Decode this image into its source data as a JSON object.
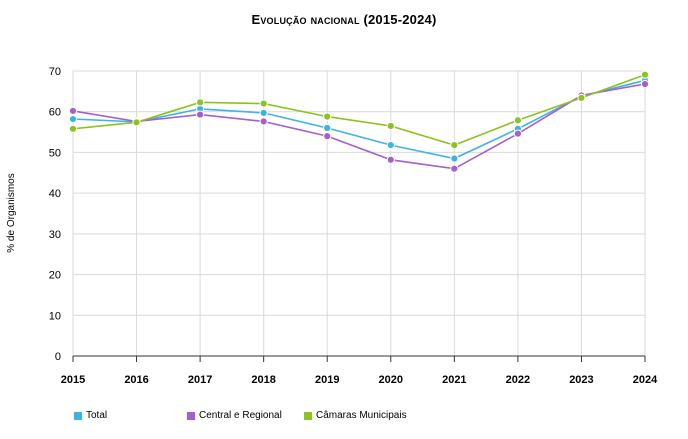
{
  "chart_data": {
    "type": "line",
    "title": "Evolução nacional (2015-2024)",
    "xlabel": "",
    "ylabel": "% de Organismos",
    "x": [
      "2015",
      "2016",
      "2017",
      "2018",
      "2019",
      "2020",
      "2021",
      "2022",
      "2023",
      "2024"
    ],
    "ylim": [
      0,
      70
    ],
    "yticks": [
      0,
      10,
      20,
      30,
      40,
      50,
      60,
      70
    ],
    "grid": true,
    "legend_position": "bottom-left",
    "series": [
      {
        "name": "Total",
        "color": "#3bb4e5",
        "values": [
          58.2,
          57.5,
          60.7,
          59.7,
          56.0,
          51.8,
          48.5,
          55.8,
          63.8,
          67.7
        ]
      },
      {
        "name": "Central e Regional",
        "color": "#a55fcf",
        "values": [
          60.2,
          57.6,
          59.3,
          57.6,
          54.0,
          48.2,
          46.0,
          54.6,
          64.0,
          66.8
        ]
      },
      {
        "name": "Câmaras Municipais",
        "color": "#8dc21f",
        "values": [
          55.8,
          57.4,
          62.3,
          62.0,
          58.8,
          56.5,
          51.8,
          57.9,
          63.4,
          69.1
        ]
      }
    ]
  }
}
